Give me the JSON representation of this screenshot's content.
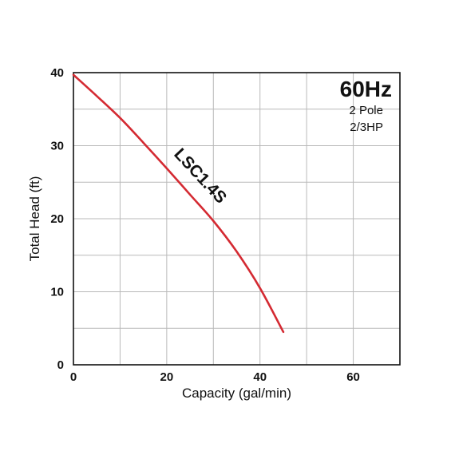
{
  "chart_data": {
    "type": "line",
    "xlabel": "Capacity  (gal/min)",
    "ylabel": "Total  Head  (ft)",
    "xlim": [
      0,
      70
    ],
    "ylim": [
      0,
      40
    ],
    "x_ticks": [
      "0",
      "20",
      "40",
      "60"
    ],
    "y_ticks": [
      "0",
      "10",
      "20",
      "30",
      "40"
    ],
    "grid": true,
    "info": {
      "frequency": "60Hz",
      "poles": "2 Pole",
      "power": "2/3HP"
    },
    "series": [
      {
        "name": "LSC1.4S",
        "color": "#d42a32",
        "x": [
          0,
          5,
          10,
          15,
          20,
          25,
          30,
          35,
          40,
          45
        ],
        "y": [
          39.7,
          36.8,
          33.8,
          30.4,
          26.9,
          23.3,
          19.7,
          15.5,
          10.5,
          4.5
        ]
      }
    ]
  }
}
